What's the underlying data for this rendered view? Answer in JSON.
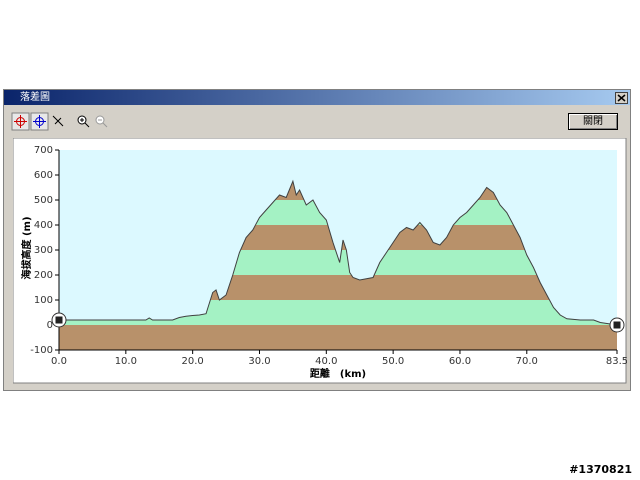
{
  "window": {
    "title": "落差圖",
    "close_button": "關閉"
  },
  "watermark": "#1370821",
  "chart_data": {
    "type": "area",
    "ylabel": "海拔高度 (m)",
    "xlabel": "距離　(km)",
    "x": [
      0,
      2,
      5,
      8,
      11,
      13,
      13.5,
      14,
      17,
      18,
      19,
      20,
      21,
      22,
      23,
      23.5,
      24,
      25,
      26,
      27,
      28,
      29,
      30,
      31,
      32,
      33,
      34,
      35,
      35.5,
      36,
      37,
      38,
      39,
      40,
      41,
      42,
      42.5,
      43,
      43.5,
      44,
      45,
      46,
      47,
      48,
      49,
      50,
      51,
      52,
      53,
      54,
      55,
      56,
      57,
      58,
      59,
      60,
      61,
      62,
      63,
      64,
      65,
      66,
      67,
      68,
      69,
      70,
      71,
      72,
      73,
      74,
      75,
      76,
      78,
      80,
      81,
      83.5
    ],
    "values": [
      20,
      20,
      20,
      20,
      20,
      20,
      28,
      20,
      20,
      30,
      35,
      38,
      40,
      45,
      130,
      140,
      100,
      120,
      200,
      290,
      350,
      380,
      430,
      460,
      490,
      520,
      510,
      575,
      520,
      540,
      480,
      500,
      450,
      420,
      330,
      250,
      340,
      300,
      210,
      190,
      180,
      185,
      190,
      250,
      290,
      330,
      370,
      390,
      380,
      410,
      380,
      330,
      320,
      350,
      400,
      430,
      450,
      480,
      510,
      550,
      530,
      480,
      450,
      400,
      350,
      280,
      230,
      170,
      120,
      70,
      40,
      25,
      20,
      20,
      10,
      0
    ],
    "xlim": [
      0,
      83.5
    ],
    "ylim": [
      -100,
      700
    ],
    "xticks": [
      {
        "value": 0,
        "label": "0.0"
      },
      {
        "value": 10,
        "label": "10.0"
      },
      {
        "value": 20,
        "label": "20.0"
      },
      {
        "value": 30,
        "label": "30.0"
      },
      {
        "value": 40,
        "label": "40.0"
      },
      {
        "value": 50,
        "label": "50.0"
      },
      {
        "value": 60,
        "label": "60.0"
      },
      {
        "value": 70,
        "label": "70.0"
      },
      83.5
    ],
    "yticks": [
      -100,
      0,
      100,
      200,
      300,
      400,
      500,
      600,
      700
    ],
    "band_colors": [
      "#b8916a",
      "#a4f2c4"
    ],
    "background": "#dcf9ff",
    "line_color": "#404040"
  }
}
